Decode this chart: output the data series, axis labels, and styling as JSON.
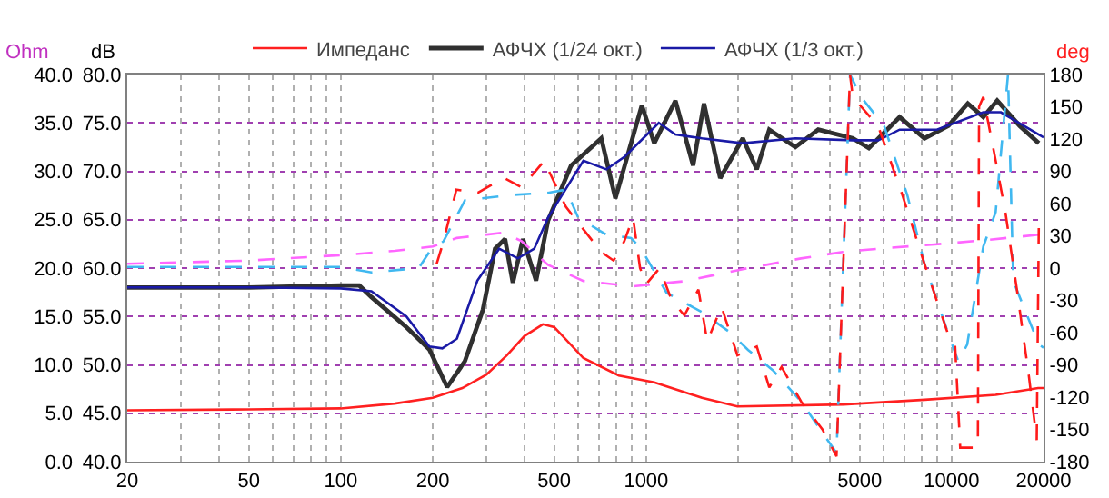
{
  "chart_data": {
    "type": "line",
    "ylabel": "Ohm",
    "y2label": "dB",
    "y3label": "deg",
    "log": "x",
    "grid": true,
    "legend": "top",
    "xlim": [
      20,
      20000
    ],
    "xticks": [
      20,
      {
        "value": 30,
        "label": null
      },
      {
        "value": 40,
        "label": null
      },
      50,
      {
        "value": 60,
        "label": null
      },
      {
        "value": 70,
        "label": null
      },
      {
        "value": 80,
        "label": null
      },
      {
        "value": 90,
        "label": null
      },
      100,
      200,
      {
        "value": 300,
        "label": null
      },
      {
        "value": 400,
        "label": null
      },
      500,
      {
        "value": 600,
        "label": null
      },
      {
        "value": 700,
        "label": null
      },
      {
        "value": 800,
        "label": null
      },
      {
        "value": 900,
        "label": null
      },
      1000,
      {
        "value": 2000,
        "label": null
      },
      {
        "value": 3000,
        "label": null
      },
      {
        "value": 4000,
        "label": null
      },
      5000,
      {
        "value": 6000,
        "label": null
      },
      {
        "value": 7000,
        "label": null
      },
      {
        "value": 8000,
        "label": null
      },
      {
        "value": 9000,
        "label": null
      },
      10000,
      20000
    ],
    "ylim": [
      0,
      40
    ],
    "yticks": [
      {
        "value": 0,
        "label": "0.0"
      },
      {
        "value": 5,
        "label": "5.0"
      },
      {
        "value": 10,
        "label": "10.0"
      },
      {
        "value": 15,
        "label": "15.0"
      },
      {
        "value": 20,
        "label": "20.0"
      },
      {
        "value": 25,
        "label": "25.0"
      },
      {
        "value": 30,
        "label": "30.0"
      },
      {
        "value": 35,
        "label": "35.0"
      },
      {
        "value": 40,
        "label": "40.0"
      }
    ],
    "y2lim": [
      40,
      80
    ],
    "y2ticks": [
      {
        "value": 40,
        "label": "40.0"
      },
      {
        "value": 45,
        "label": "45.0"
      },
      {
        "value": 50,
        "label": "50.0"
      },
      {
        "value": 55,
        "label": "55.0"
      },
      {
        "value": 60,
        "label": "60.0"
      },
      {
        "value": 65,
        "label": "65.0"
      },
      {
        "value": 70,
        "label": "70.0"
      },
      {
        "value": 75,
        "label": "75.0"
      },
      {
        "value": 80,
        "label": "80.0"
      }
    ],
    "y3lim": [
      -180,
      180
    ],
    "y3ticks": [
      180,
      150,
      120,
      90,
      60,
      30,
      0,
      -30,
      -60,
      -90,
      -120,
      -150,
      -180
    ],
    "series": [
      {
        "name": "Импеданс",
        "axis": "y",
        "color": "#ff2020",
        "line_style": "solid",
        "x": [
          20,
          50,
          100,
          150,
          200,
          250,
          300,
          350,
          400,
          459,
          500,
          623,
          814,
          1063,
          1524,
          1990,
          4430,
          8170,
          13940,
          19200,
          20000
        ],
        "values": [
          5.3,
          5.4,
          5.5,
          6.0,
          6.6,
          7.6,
          9.0,
          11.0,
          13.0,
          14.2,
          13.9,
          10.7,
          8.9,
          8.2,
          6.6,
          5.7,
          5.9,
          6.4,
          6.9,
          7.6,
          7.6
        ]
      },
      {
        "name": "АФЧХ (1/24 окт.)",
        "axis": "y2",
        "color": "#303030",
        "line_style": "solid",
        "x": [
          20,
          50,
          100,
          115,
          126,
          164,
          195,
          223,
          255,
          292,
          320,
          345,
          366,
          395,
          436,
          477,
          568,
          713,
          793,
          968,
          1063,
          1247,
          1425,
          1547,
          1748,
          2072,
          2302,
          2530,
          3080,
          3660,
          4750,
          5360,
          6760,
          8150,
          9770,
          11300,
          12700,
          14100,
          16700,
          19300
        ],
        "values": [
          58.0,
          58.0,
          58.2,
          58.2,
          57.0,
          53.9,
          51.6,
          47.7,
          50.4,
          55.7,
          62.0,
          63.0,
          58.5,
          63.0,
          58.7,
          64.9,
          70.6,
          73.4,
          67.2,
          76.8,
          72.9,
          77.3,
          70.6,
          77.0,
          69.3,
          73.4,
          70.2,
          74.3,
          72.5,
          74.3,
          73.4,
          72.4,
          75.6,
          73.4,
          74.7,
          77.0,
          75.6,
          77.3,
          74.7,
          72.9
        ]
      },
      {
        "name": "АФЧХ (1/3 окт.)",
        "axis": "y2",
        "color": "#1a1aa6",
        "line_style": "solid",
        "x": [
          20,
          50,
          100,
          126,
          164,
          195,
          215,
          240,
          280,
          330,
          380,
          430,
          477,
          623,
          741,
          850,
          1100,
          1247,
          1524,
          2072,
          3080,
          4750,
          5750,
          6760,
          8950,
          12700,
          14500,
          19300,
          20000
        ],
        "values": [
          58.0,
          58.0,
          57.9,
          57.6,
          55.0,
          51.9,
          51.7,
          52.7,
          58.7,
          62.0,
          61.0,
          62.0,
          65.2,
          71.1,
          70.2,
          71.5,
          75.0,
          73.8,
          73.4,
          72.9,
          73.4,
          73.2,
          73.2,
          74.3,
          74.3,
          76.1,
          76.1,
          73.8,
          73.5
        ]
      },
      {
        "axis": "y3",
        "color": "#ff66ff",
        "line_style": "dashed",
        "x": [
          20,
          50,
          100,
          150,
          200,
          240,
          342,
          391,
          477,
          623,
          906,
          1350,
          2070,
          3215,
          4400,
          5750,
          8800,
          12900,
          19300,
          20000
        ],
        "values": [
          4,
          7,
          12,
          16,
          20,
          28,
          33,
          25,
          3,
          -12,
          -17,
          -12,
          -1,
          9,
          15,
          18,
          22,
          26,
          31,
          31
        ]
      },
      {
        "axis": "y3",
        "color": "#40b8f0",
        "line_style": "dashed",
        "x": [
          20,
          100,
          126,
          180,
          195,
          217,
          255,
          366,
          477,
          546,
          599,
          741,
          893,
          968,
          1167,
          1524,
          1887,
          2155,
          2600,
          3215,
          4200,
          4650,
          5060,
          6015,
          7160,
          8150,
          9860,
          10530,
          11250,
          12700,
          13940,
          15300,
          15920,
          19300,
          20000
        ],
        "values": [
          1,
          1,
          -4,
          0,
          15,
          25,
          63,
          68,
          70,
          73,
          47,
          31,
          28,
          17,
          -23,
          -41,
          -60,
          -76,
          -95,
          -124,
          -172,
          180,
          159,
          132,
          68,
          4,
          -65,
          -87,
          -71,
          20,
          52,
          180,
          -12,
          -71,
          -74
        ]
      },
      {
        "axis": "y3",
        "color": "#ff1a1a",
        "line_style": "dashed",
        "x": [
          206,
          217,
          239,
          281,
          342,
          391,
          465,
          477,
          546,
          623,
          713,
          782,
          848,
          906,
          955,
          1000,
          1106,
          1213,
          1334,
          1483,
          1585,
          1765,
          1990,
          2303,
          2530,
          2775,
          3215,
          3775,
          4200,
          4650,
          4750,
          5750,
          6900,
          8150,
          9700,
          10260,
          10670,
          12190,
          12300,
          12700,
          13940,
          15000,
          16360,
          17900,
          19000,
          19300
        ],
        "values": [
          4,
          25,
          73,
          70,
          84,
          75,
          100,
          92,
          57,
          36,
          15,
          7,
          25,
          47,
          0,
          -15,
          0,
          -30,
          -44,
          -20,
          -68,
          -36,
          -81,
          -73,
          -111,
          -92,
          -124,
          -150,
          -175,
          180,
          159,
          132,
          68,
          4,
          -60,
          -70,
          -167,
          -167,
          150,
          159,
          100,
          52,
          -20,
          -100,
          -160,
          40
        ]
      }
    ]
  }
}
